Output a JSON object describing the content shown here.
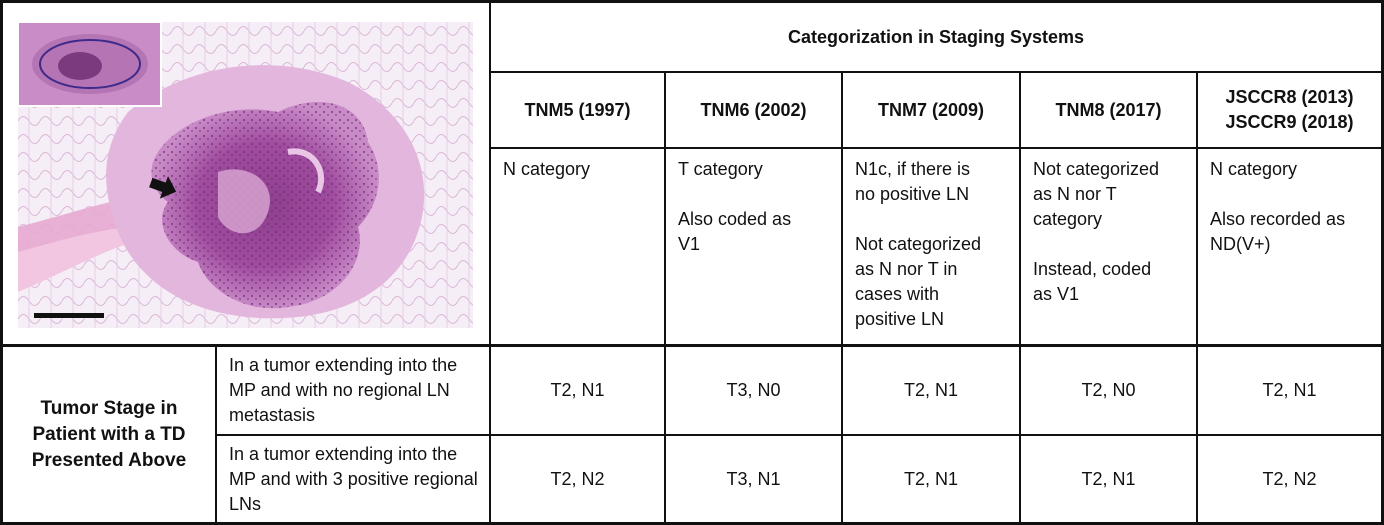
{
  "table": {
    "title": "Categorization in Staging Systems",
    "columns": [
      "TNM5 (1997)",
      "TNM6 (2002)",
      "TNM7 (2009)",
      "TNM8 (2017)",
      "JSCCR8 (2013)\nJSCCR9 (2018)"
    ],
    "categorization": [
      "N category",
      "T category\n\nAlso coded as\nV1",
      "N1c, if there is\nno positive LN\n\nNot categorized\nas N nor T in\ncases with\npositive LN",
      "Not categorized\nas N nor T\ncategory\n\nInstead, coded\nas V1",
      "N category\n\nAlso recorded as\nND(V+)"
    ],
    "stage_label": "Tumor Stage in Patient with a TD Presented Above",
    "rows": [
      {
        "scenario": "In a tumor extending into the MP and with no regional LN metastasis",
        "values": [
          "T2, N1",
          "T3, N0",
          "T2, N1",
          "T2, N0",
          "T2, N1"
        ]
      },
      {
        "scenario": "In a tumor extending into the MP and with 3 positive regional LNs",
        "values": [
          "T2, N2",
          "T3, N1",
          "T2, N1",
          "T2, N1",
          "T2, N2"
        ]
      }
    ]
  },
  "figure": {
    "description_icon": "histology-image",
    "arrow_icon": "arrow-right-icon",
    "scale_bar_icon": "scale-bar"
  }
}
